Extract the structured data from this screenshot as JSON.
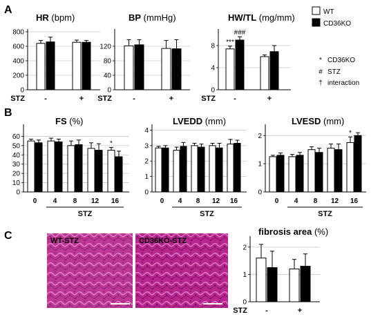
{
  "panels": {
    "a": "A",
    "b": "B",
    "c": "C"
  },
  "x_treatment_label": "STZ",
  "group_labels": [
    "-",
    "+"
  ],
  "legend": {
    "series": [
      {
        "label": "WT",
        "color": "#ffffff"
      },
      {
        "label": "CD36KO",
        "color": "#000000"
      }
    ],
    "symbols": [
      {
        "symbol": "*",
        "label": "CD36KO"
      },
      {
        "symbol": "#",
        "label": "STZ"
      },
      {
        "symbol": "†",
        "label": "interaction"
      }
    ]
  },
  "images": {
    "wt": {
      "label": "WT-STZ",
      "tissue_color": "#b8268f"
    },
    "ko": {
      "label": "CD36KO-STZ",
      "tissue_color": "#b8268f"
    }
  },
  "chart_data": [
    {
      "id": "hr",
      "type": "bar",
      "title_bold": "HR",
      "title_unit": "(bpm)",
      "ylim": [
        0,
        800
      ],
      "yticks": [
        0,
        200,
        400,
        600,
        800
      ],
      "grid": true,
      "series": [
        {
          "name": "WT",
          "values": [
            640,
            655
          ],
          "errors": [
            40,
            30
          ]
        },
        {
          "name": "CD36KO",
          "values": [
            660,
            655
          ],
          "errors": [
            65,
            25
          ]
        }
      ],
      "annotations": []
    },
    {
      "id": "bp",
      "type": "bar",
      "title_bold": "BP",
      "title_unit": "(mmHg)",
      "ylim": [
        0,
        160
      ],
      "yticks": [
        0,
        40,
        80,
        120
      ],
      "grid": true,
      "series": [
        {
          "name": "WT",
          "values": [
            121,
            114
          ],
          "errors": [
            17,
            22
          ]
        },
        {
          "name": "CD36KO",
          "values": [
            124,
            113
          ],
          "errors": [
            14,
            25
          ]
        }
      ],
      "annotations": []
    },
    {
      "id": "hwtl",
      "type": "bar",
      "title_bold": "HW/TL",
      "title_unit": "(mg/mm)",
      "ylim": [
        0,
        10.5
      ],
      "yticks": [
        0,
        4,
        8
      ],
      "grid": true,
      "series": [
        {
          "name": "WT",
          "values": [
            7.4,
            6.0
          ],
          "errors": [
            0.5,
            0.3
          ]
        },
        {
          "name": "CD36KO",
          "values": [
            9.0,
            6.9
          ],
          "errors": [
            0.6,
            1.1
          ]
        }
      ],
      "annotations": [
        {
          "group": 0,
          "series": 0,
          "text": "***"
        },
        {
          "group": 0,
          "series": 1,
          "text": "###"
        }
      ]
    },
    {
      "id": "fs",
      "type": "bar",
      "title_bold": "FS",
      "title_unit": "(%)",
      "categories": [
        "0",
        "4",
        "8",
        "12",
        "16"
      ],
      "ylim": [
        0,
        70
      ],
      "yticks": [
        0,
        10,
        20,
        30,
        40,
        50,
        60
      ],
      "grid": true,
      "series": [
        {
          "name": "WT",
          "values": [
            55,
            55,
            50,
            47,
            45
          ],
          "errors": [
            2,
            3,
            5,
            6,
            3
          ]
        },
        {
          "name": "CD36KO",
          "values": [
            53,
            54,
            51,
            45,
            38
          ],
          "errors": [
            3,
            3,
            5,
            7,
            6
          ]
        }
      ],
      "annotations": [
        {
          "group": 4,
          "series": 0,
          "text": "*"
        }
      ]
    },
    {
      "id": "lvedd",
      "type": "bar",
      "title_bold": "LVEDD",
      "title_unit": "(mm)",
      "categories": [
        "0",
        "4",
        "8",
        "12",
        "16"
      ],
      "ylim": [
        0,
        4.2
      ],
      "yticks": [
        0,
        1,
        2,
        3,
        4
      ],
      "grid": true,
      "series": [
        {
          "name": "WT",
          "values": [
            2.85,
            2.7,
            3.0,
            3.0,
            3.1
          ],
          "errors": [
            0.1,
            0.2,
            0.15,
            0.15,
            0.3
          ]
        },
        {
          "name": "CD36KO",
          "values": [
            2.85,
            2.95,
            2.9,
            2.85,
            3.15
          ],
          "errors": [
            0.15,
            0.25,
            0.2,
            0.3,
            0.2
          ]
        }
      ],
      "annotations": []
    },
    {
      "id": "lvesd",
      "type": "bar",
      "title_bold": "LVESD",
      "title_unit": "(mm)",
      "categories": [
        "0",
        "4",
        "8",
        "12",
        "16"
      ],
      "ylim": [
        0,
        2.3
      ],
      "yticks": [
        0,
        1,
        2
      ],
      "grid": true,
      "series": [
        {
          "name": "WT",
          "values": [
            1.25,
            1.25,
            1.5,
            1.55,
            1.75
          ],
          "errors": [
            0.05,
            0.08,
            0.1,
            0.15,
            0.2
          ]
        },
        {
          "name": "CD36KO",
          "values": [
            1.3,
            1.3,
            1.4,
            1.5,
            2.0
          ],
          "errors": [
            0.08,
            0.1,
            0.15,
            0.2,
            0.1
          ]
        }
      ],
      "annotations": [
        {
          "group": 4,
          "series": 0,
          "text": "*"
        }
      ]
    },
    {
      "id": "fibrosis",
      "type": "bar",
      "title_bold": "fibrosis area",
      "title_unit": "(%)",
      "ylim": [
        0,
        2.3
      ],
      "yticks": [
        0,
        1,
        2
      ],
      "grid": true,
      "series": [
        {
          "name": "WT",
          "values": [
            1.6,
            1.2
          ],
          "errors": [
            0.5,
            0.35
          ]
        },
        {
          "name": "CD36KO",
          "values": [
            1.25,
            1.3
          ],
          "errors": [
            0.6,
            0.45
          ]
        }
      ],
      "annotations": []
    }
  ]
}
